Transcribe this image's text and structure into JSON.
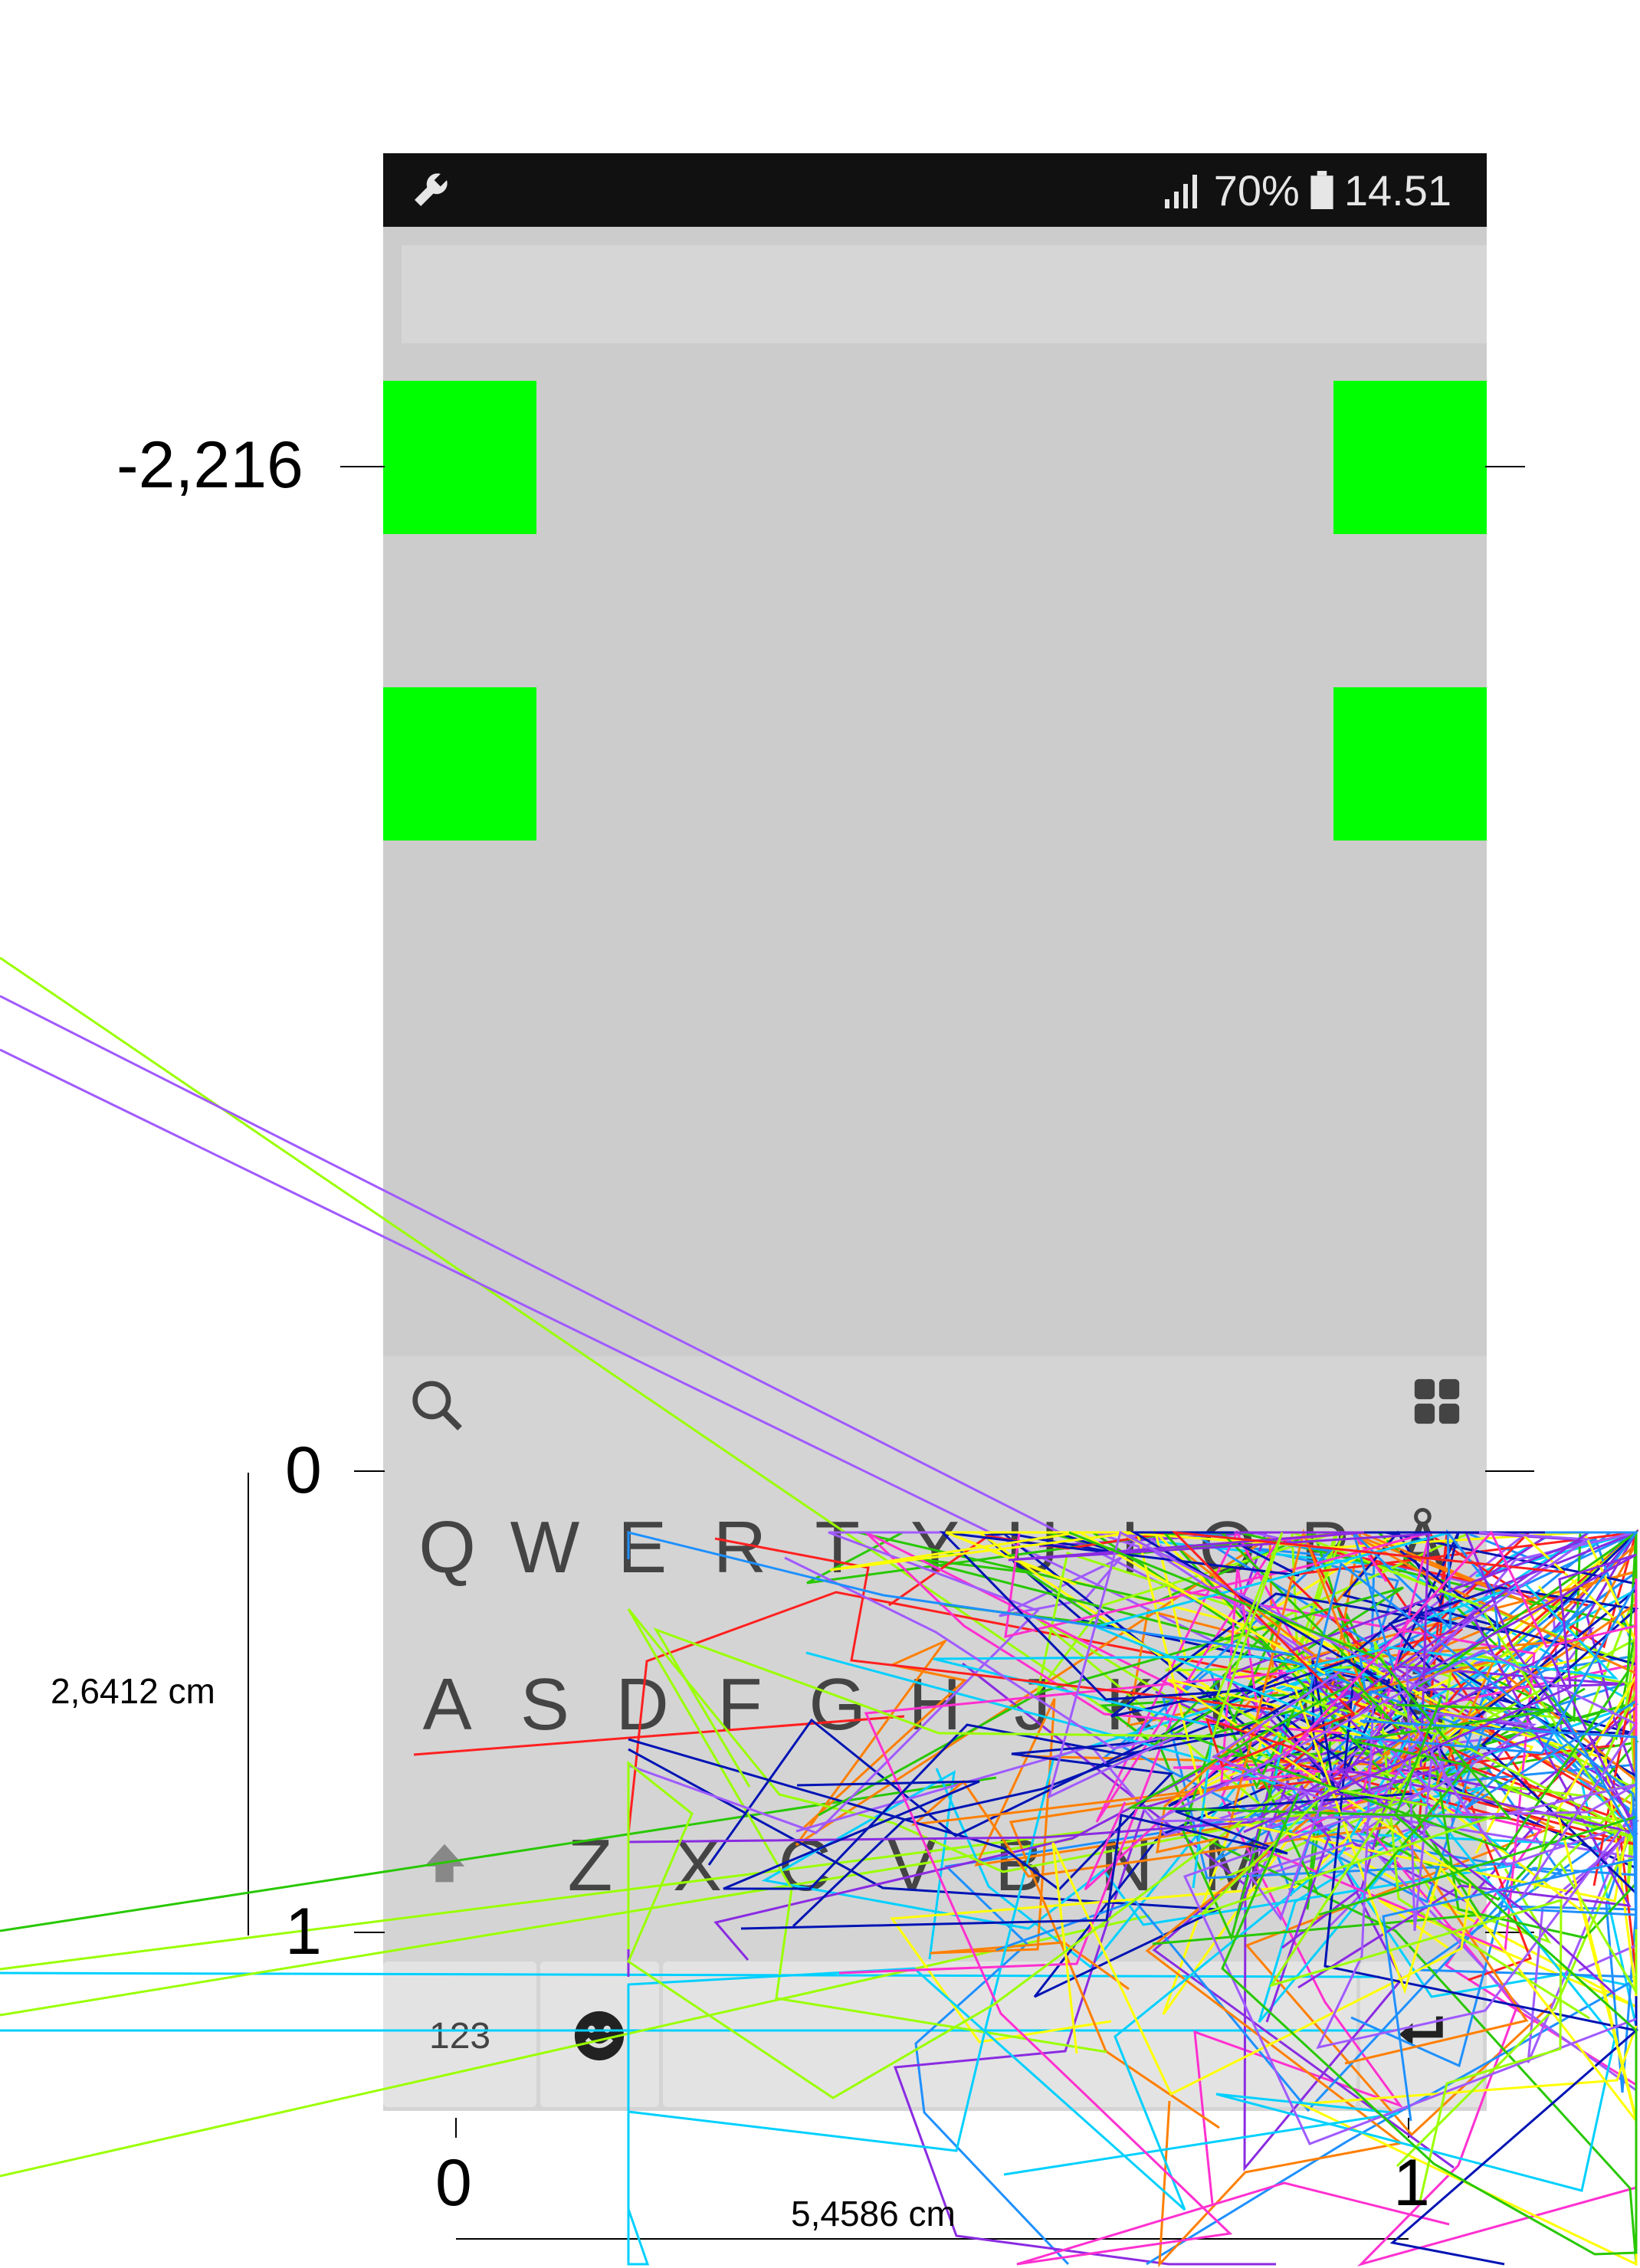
{
  "status_bar": {
    "battery_percent": "70%",
    "time": "14.51",
    "icons": [
      "wrench-icon",
      "signal-icon",
      "battery-icon"
    ]
  },
  "text_field": {
    "value": ""
  },
  "targets": {
    "color": "#00ff00",
    "count": 4
  },
  "keyboard": {
    "top_icons": [
      "search-icon",
      "grid-icon"
    ],
    "row1": [
      "Q",
      "W",
      "E",
      "R",
      "T",
      "Y",
      "U",
      "I",
      "O",
      "P",
      "Å"
    ],
    "row2": [
      "A",
      "S",
      "D",
      "F",
      "G",
      "H",
      "J",
      "K",
      "L",
      "Ö",
      "Ä"
    ],
    "row3": [
      "Z",
      "X",
      "C",
      "V",
      "B",
      "N",
      "M"
    ],
    "bottom": {
      "numbers_label": "123",
      "emoji_icon": "smiley-icon",
      "enter_icon": "enter-icon"
    }
  },
  "annotations": {
    "y_top_label": "-2,216",
    "y_zero_label": "0",
    "y_one_label": "1",
    "height_label": "2,6412 cm",
    "x_zero_label": "0",
    "x_one_label": "1",
    "width_label": "5,4586 cm"
  },
  "trace_colors": [
    "#ff2020",
    "#ff7f00",
    "#ffff00",
    "#9aff00",
    "#28c800",
    "#00d0ff",
    "#1e90ff",
    "#0014b4",
    "#8a2be2",
    "#a05aff",
    "#ff30d0"
  ]
}
